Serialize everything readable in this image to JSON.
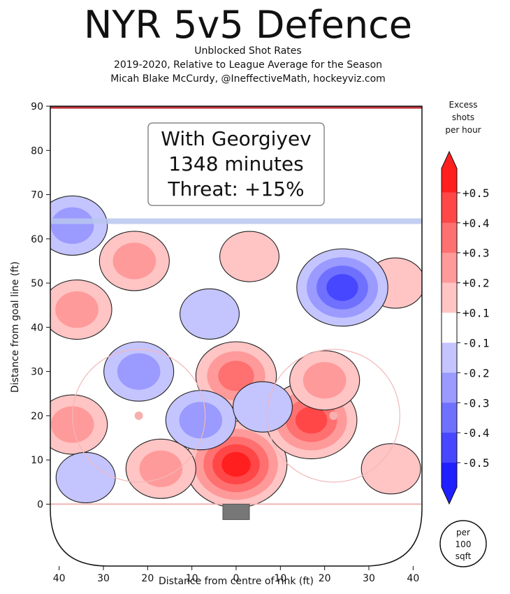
{
  "chart_data": {
    "type": "heatmap",
    "title": "NYR 5v5 Defence",
    "subtitle_lines": [
      "Unblocked Shot Rates",
      "2019-2020, Relative to League Average for the Season",
      "Micah Blake McCurdy, @IneffectiveMath, hockeyviz.com"
    ],
    "xlabel": "Distance from centre of rink (ft)",
    "ylabel": "Distance from goal line (ft)",
    "xlim": [
      -42,
      42
    ],
    "ylim": [
      -14,
      90
    ],
    "x_ticks": [
      -40,
      -30,
      -20,
      -10,
      0,
      10,
      20,
      30,
      40
    ],
    "x_tick_labels": [
      "40",
      "30",
      "20",
      "10",
      "0",
      "10",
      "20",
      "30",
      "40"
    ],
    "y_ticks": [
      0,
      10,
      20,
      30,
      40,
      50,
      60,
      70,
      80,
      90
    ],
    "y_tick_labels": [
      "0",
      "10",
      "20",
      "30",
      "40",
      "50",
      "60",
      "70",
      "80",
      "90"
    ],
    "blue_line_y": 64,
    "annotation": {
      "lines": [
        "With Georgiyev",
        "1348 minutes",
        "Threat: +15%"
      ]
    },
    "colorbar": {
      "title_lines": [
        "Excess",
        "shots",
        "per hour"
      ],
      "tick_labels": [
        "+0.5",
        "+0.4",
        "+0.3",
        "+0.2",
        "+0.1",
        "-0.1",
        "-0.2",
        "-0.3",
        "-0.4",
        "-0.5"
      ],
      "levels": [
        0.5,
        0.4,
        0.3,
        0.2,
        0.1,
        -0.1,
        -0.2,
        -0.3,
        -0.4,
        -0.5
      ],
      "band_colors": [
        "#ff1f1f",
        "#ff4747",
        "#ff7070",
        "#ff9a9a",
        "#ffc4c4",
        "#ffffff",
        "#c4c4ff",
        "#9a9aff",
        "#7070ff",
        "#4747ff",
        "#1f1fff"
      ],
      "unit_lines": [
        "per",
        "100",
        "sqft"
      ]
    },
    "hotspots": [
      {
        "x": 0,
        "y": 9,
        "value": 0.5
      },
      {
        "x": 17,
        "y": 19,
        "value": 0.4
      },
      {
        "x": 0,
        "y": 29,
        "value": 0.3
      },
      {
        "x": 20,
        "y": 28,
        "value": 0.2
      },
      {
        "x": -36,
        "y": 44,
        "value": 0.2
      },
      {
        "x": -23,
        "y": 55,
        "value": 0.2
      },
      {
        "x": -37,
        "y": 18,
        "value": 0.2
      },
      {
        "x": -17,
        "y": 8,
        "value": 0.2
      },
      {
        "x": 3,
        "y": 56,
        "value": 0.1
      },
      {
        "x": 36,
        "y": 50,
        "value": 0.1
      },
      {
        "x": 35,
        "y": 8,
        "value": 0.1
      },
      {
        "x": 24,
        "y": 49,
        "value": -0.4
      },
      {
        "x": -37,
        "y": 63,
        "value": -0.2
      },
      {
        "x": -22,
        "y": 30,
        "value": -0.2
      },
      {
        "x": -34,
        "y": 6,
        "value": -0.1
      },
      {
        "x": -8,
        "y": 19,
        "value": -0.2
      },
      {
        "x": 6,
        "y": 22,
        "value": -0.1
      },
      {
        "x": -6,
        "y": 43,
        "value": -0.1
      }
    ]
  }
}
